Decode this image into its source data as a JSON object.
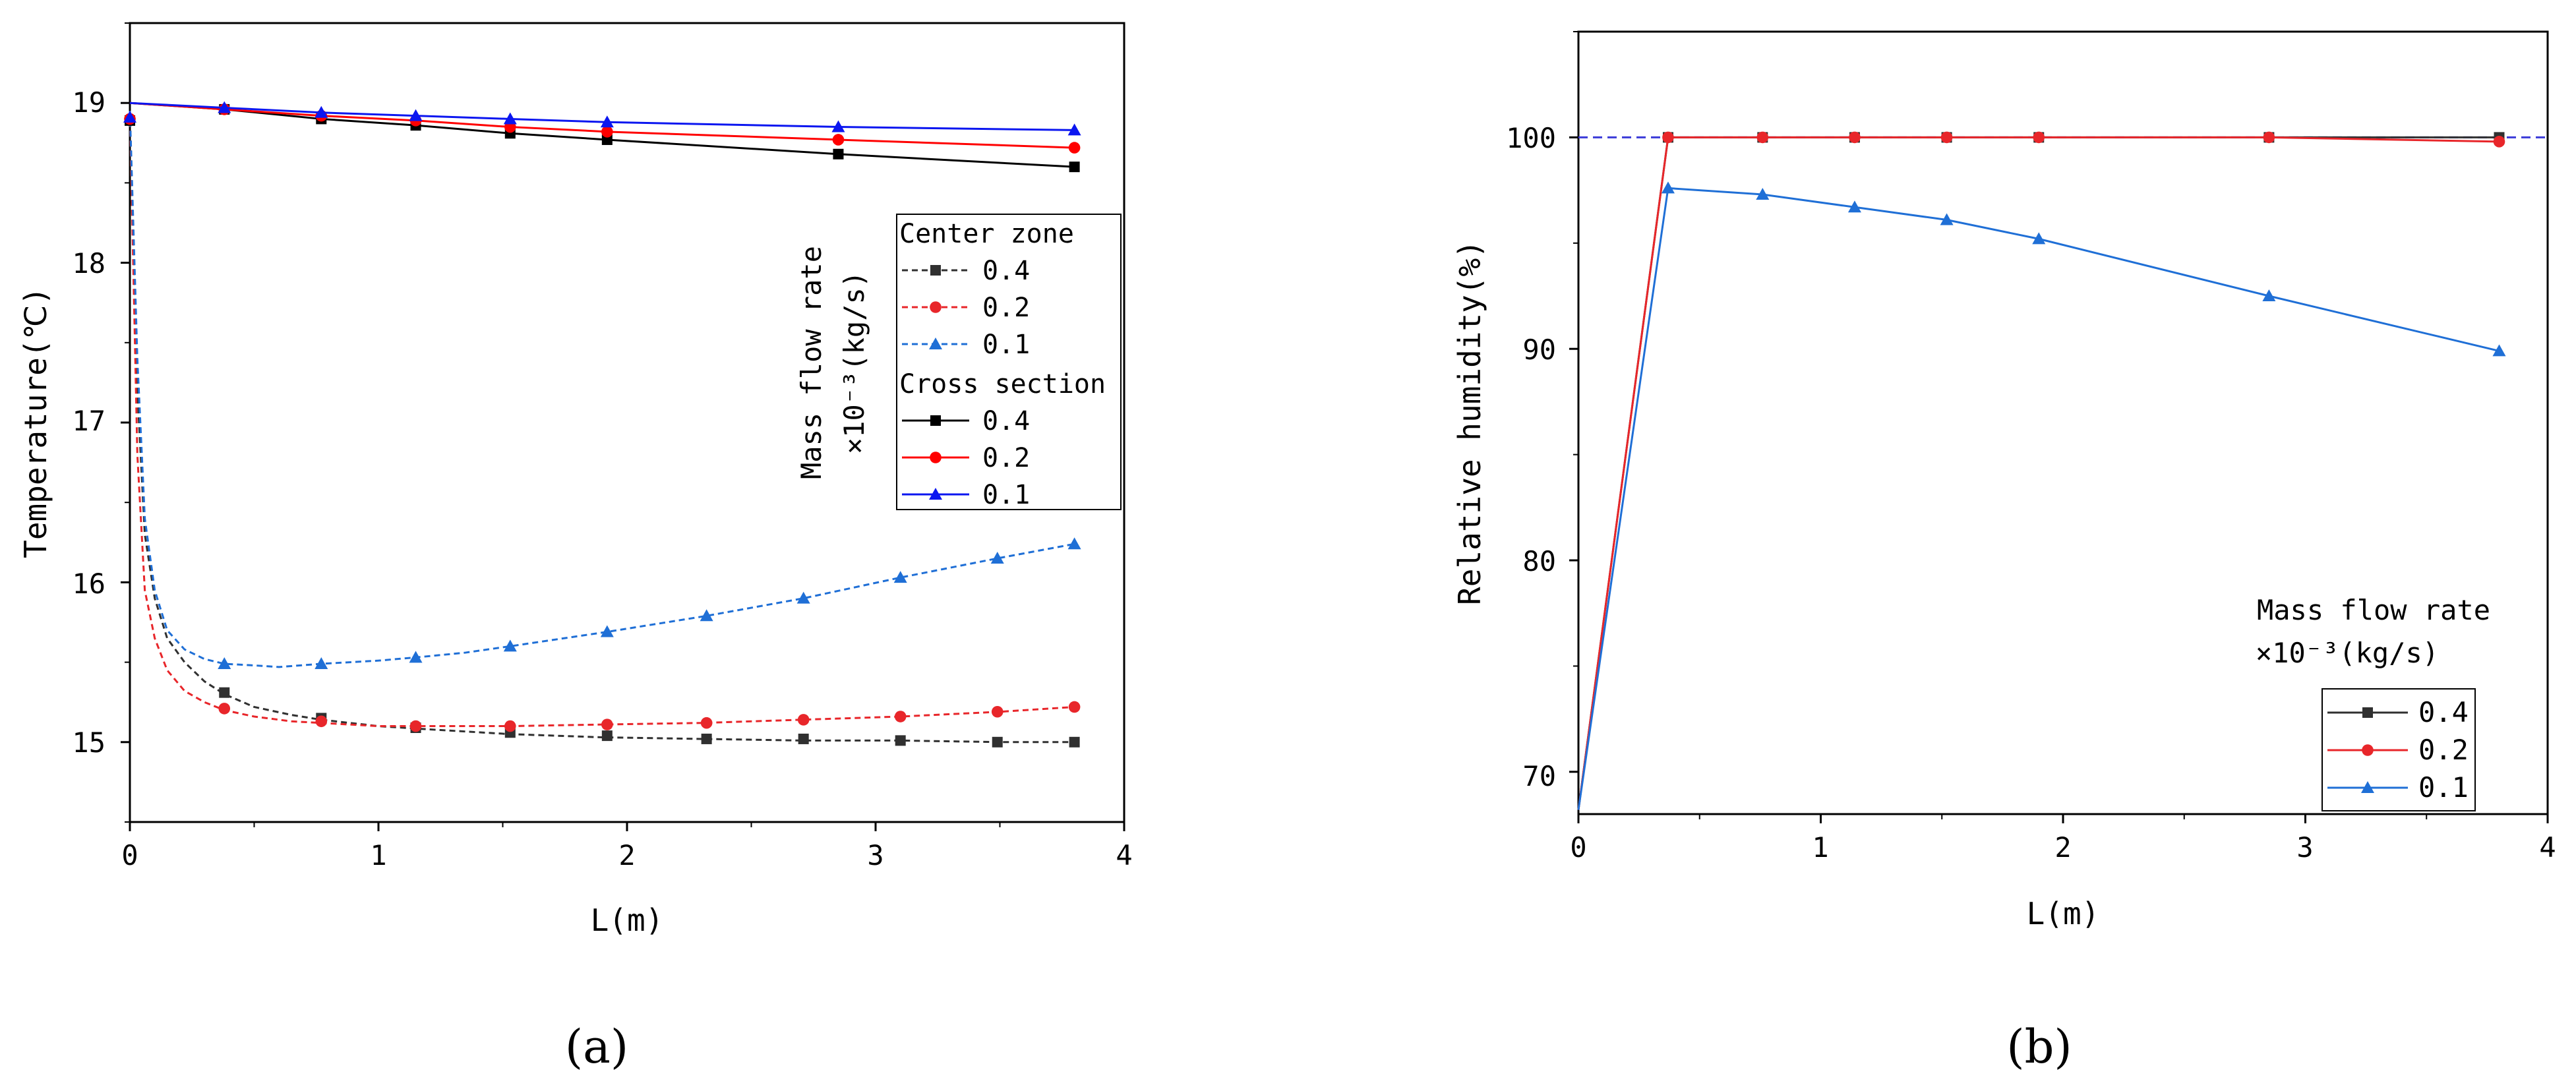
{
  "colors": {
    "black": "#303030",
    "red": "#e8262a",
    "blue": "#1f6fd6",
    "pureBlue": "#0b16f0",
    "dashBlue": "#3b3bd8"
  },
  "chart_data": [
    {
      "type": "line",
      "panel_label": "(a)",
      "xlabel": "L(m)",
      "ylabel": "Temperature(℃)",
      "xlim": [
        0,
        4
      ],
      "ylim": [
        14.5,
        19.5
      ],
      "xticks": [
        0,
        1,
        2,
        3,
        4
      ],
      "xtick_labels": [
        "0",
        "1",
        "2",
        "3",
        "4"
      ],
      "yticks": [
        15,
        16,
        17,
        18,
        19
      ],
      "ytick_labels": [
        "15",
        "16",
        "17",
        "18",
        "19"
      ],
      "legend": {
        "side_title_line1": "Mass flow rate",
        "side_title_line2": "×10⁻³(kg/s)",
        "group1_title": "Center zone",
        "group2_title": "Cross section",
        "labels": [
          "0.4",
          "0.2",
          "0.1",
          "0.4",
          "0.2",
          "0.1"
        ]
      },
      "series": [
        {
          "name": "Center zone 0.4",
          "style": "dashed",
          "color": "#303030",
          "marker": "square",
          "curve": [
            [
              0,
              18.95
            ],
            [
              0.03,
              17.2
            ],
            [
              0.06,
              16.3
            ],
            [
              0.1,
              15.9
            ],
            [
              0.15,
              15.65
            ],
            [
              0.22,
              15.5
            ],
            [
              0.3,
              15.38
            ],
            [
              0.38,
              15.3
            ],
            [
              0.5,
              15.22
            ],
            [
              0.65,
              15.17
            ],
            [
              0.77,
              15.14
            ],
            [
              1.0,
              15.1
            ],
            [
              1.2,
              15.08
            ],
            [
              1.53,
              15.05
            ],
            [
              1.9,
              15.03
            ],
            [
              2.3,
              15.02
            ],
            [
              2.7,
              15.01
            ],
            [
              3.1,
              15.01
            ],
            [
              3.5,
              15.0
            ],
            [
              3.8,
              15.0
            ]
          ],
          "markers": [
            [
              0.38,
              15.31
            ],
            [
              0.77,
              15.15
            ],
            [
              1.15,
              15.09
            ],
            [
              1.53,
              15.06
            ],
            [
              1.92,
              15.04
            ],
            [
              2.32,
              15.02
            ],
            [
              2.71,
              15.02
            ],
            [
              3.1,
              15.01
            ],
            [
              3.49,
              15.0
            ],
            [
              3.8,
              15.0
            ]
          ]
        },
        {
          "name": "Center zone 0.2",
          "style": "dashed",
          "color": "#e8262a",
          "marker": "circle",
          "curve": [
            [
              0,
              18.95
            ],
            [
              0.03,
              16.8
            ],
            [
              0.06,
              15.95
            ],
            [
              0.1,
              15.65
            ],
            [
              0.15,
              15.45
            ],
            [
              0.22,
              15.32
            ],
            [
              0.3,
              15.25
            ],
            [
              0.38,
              15.2
            ],
            [
              0.5,
              15.16
            ],
            [
              0.65,
              15.13
            ],
            [
              0.77,
              15.12
            ],
            [
              1.0,
              15.1
            ],
            [
              1.2,
              15.1
            ],
            [
              1.53,
              15.1
            ],
            [
              1.9,
              15.11
            ],
            [
              2.3,
              15.12
            ],
            [
              2.7,
              15.14
            ],
            [
              3.1,
              15.16
            ],
            [
              3.5,
              15.19
            ],
            [
              3.8,
              15.22
            ]
          ],
          "markers": [
            [
              0.38,
              15.21
            ],
            [
              0.77,
              15.13
            ],
            [
              1.15,
              15.1
            ],
            [
              1.53,
              15.1
            ],
            [
              1.92,
              15.11
            ],
            [
              2.32,
              15.12
            ],
            [
              2.71,
              15.14
            ],
            [
              3.1,
              15.16
            ],
            [
              3.49,
              15.19
            ],
            [
              3.8,
              15.22
            ]
          ]
        },
        {
          "name": "Center zone 0.1",
          "style": "dashed",
          "color": "#1f6fd6",
          "marker": "triangle",
          "curve": [
            [
              0,
              18.95
            ],
            [
              0.03,
              17.4
            ],
            [
              0.06,
              16.4
            ],
            [
              0.1,
              15.95
            ],
            [
              0.15,
              15.7
            ],
            [
              0.22,
              15.58
            ],
            [
              0.3,
              15.52
            ],
            [
              0.38,
              15.49
            ],
            [
              0.5,
              15.48
            ],
            [
              0.6,
              15.47
            ],
            [
              0.77,
              15.49
            ],
            [
              1.0,
              15.51
            ],
            [
              1.15,
              15.53
            ],
            [
              1.35,
              15.56
            ],
            [
              1.53,
              15.6
            ],
            [
              1.92,
              15.69
            ],
            [
              2.32,
              15.79
            ],
            [
              2.71,
              15.9
            ],
            [
              3.1,
              16.03
            ],
            [
              3.49,
              16.15
            ],
            [
              3.8,
              16.24
            ]
          ],
          "markers": [
            [
              0.38,
              15.49
            ],
            [
              0.77,
              15.49
            ],
            [
              1.15,
              15.53
            ],
            [
              1.53,
              15.6
            ],
            [
              1.92,
              15.69
            ],
            [
              2.32,
              15.79
            ],
            [
              2.71,
              15.9
            ],
            [
              3.1,
              16.03
            ],
            [
              3.49,
              16.15
            ],
            [
              3.8,
              16.24
            ]
          ]
        },
        {
          "name": "Cross section 0.4",
          "style": "solid",
          "color": "#000000",
          "marker": "square",
          "curve": [
            [
              0,
              19.0
            ],
            [
              0.38,
              18.96
            ],
            [
              0.77,
              18.9
            ],
            [
              1.15,
              18.86
            ],
            [
              1.53,
              18.81
            ],
            [
              1.92,
              18.77
            ],
            [
              2.85,
              18.68
            ],
            [
              3.8,
              18.6
            ]
          ],
          "markers": [
            [
              0,
              18.89
            ],
            [
              0.38,
              18.96
            ],
            [
              0.77,
              18.9
            ],
            [
              1.15,
              18.86
            ],
            [
              1.53,
              18.81
            ],
            [
              1.92,
              18.77
            ],
            [
              2.85,
              18.68
            ],
            [
              3.8,
              18.6
            ]
          ]
        },
        {
          "name": "Cross section 0.2",
          "style": "solid",
          "color": "#ff0000",
          "marker": "circle",
          "curve": [
            [
              0,
              19.0
            ],
            [
              0.38,
              18.96
            ],
            [
              0.77,
              18.92
            ],
            [
              1.15,
              18.89
            ],
            [
              1.53,
              18.85
            ],
            [
              1.92,
              18.82
            ],
            [
              2.85,
              18.77
            ],
            [
              3.8,
              18.72
            ]
          ],
          "markers": [
            [
              0,
              18.9
            ],
            [
              0.38,
              18.96
            ],
            [
              0.77,
              18.92
            ],
            [
              1.15,
              18.89
            ],
            [
              1.53,
              18.85
            ],
            [
              1.92,
              18.82
            ],
            [
              2.85,
              18.77
            ],
            [
              3.8,
              18.72
            ]
          ]
        },
        {
          "name": "Cross section 0.1",
          "style": "solid",
          "color": "#0b16f0",
          "marker": "triangle",
          "curve": [
            [
              0,
              19.0
            ],
            [
              0.38,
              18.97
            ],
            [
              0.77,
              18.94
            ],
            [
              1.15,
              18.92
            ],
            [
              1.53,
              18.9
            ],
            [
              1.92,
              18.88
            ],
            [
              2.85,
              18.85
            ],
            [
              3.8,
              18.83
            ]
          ],
          "markers": [
            [
              0,
              18.91
            ],
            [
              0.38,
              18.97
            ],
            [
              0.77,
              18.94
            ],
            [
              1.15,
              18.92
            ],
            [
              1.53,
              18.9
            ],
            [
              1.92,
              18.88
            ],
            [
              2.85,
              18.85
            ],
            [
              3.8,
              18.83
            ]
          ]
        }
      ]
    },
    {
      "type": "line",
      "panel_label": "(b)",
      "xlabel": "L(m)",
      "ylabel": "Relative humidity(%)",
      "xlim": [
        0,
        4
      ],
      "ylim": [
        68,
        105
      ],
      "xticks": [
        0,
        1,
        2,
        3,
        4
      ],
      "xtick_labels": [
        "0",
        "1",
        "2",
        "3",
        "4"
      ],
      "yticks": [
        70,
        80,
        90,
        100
      ],
      "ytick_labels": [
        "70",
        "80",
        "90",
        "100"
      ],
      "reference_line": 100,
      "legend": {
        "title_line1": "Mass flow rate",
        "title_line2": "×10⁻³(kg/s)",
        "labels": [
          "0.4",
          "0.2",
          "0.1"
        ]
      },
      "series": [
        {
          "name": "0.4",
          "color": "#303030",
          "marker": "square",
          "points": [
            [
              0,
              68.2
            ],
            [
              0.37,
              100
            ],
            [
              0.76,
              100
            ],
            [
              1.14,
              100
            ],
            [
              1.52,
              100
            ],
            [
              1.9,
              100
            ],
            [
              2.85,
              100
            ],
            [
              3.8,
              100
            ]
          ]
        },
        {
          "name": "0.2",
          "color": "#e8262a",
          "marker": "circle",
          "points": [
            [
              0,
              68.2
            ],
            [
              0.37,
              100
            ],
            [
              0.76,
              100
            ],
            [
              1.14,
              100
            ],
            [
              1.52,
              100
            ],
            [
              1.9,
              100
            ],
            [
              2.85,
              100
            ],
            [
              3.8,
              99.8
            ]
          ]
        },
        {
          "name": "0.1",
          "color": "#1f6fd6",
          "marker": "triangle",
          "points": [
            [
              0,
              68.2
            ],
            [
              0.37,
              97.6
            ],
            [
              0.76,
              97.3
            ],
            [
              1.14,
              96.7
            ],
            [
              1.52,
              96.1
            ],
            [
              1.9,
              95.2
            ],
            [
              2.85,
              92.5
            ],
            [
              3.8,
              89.9
            ]
          ]
        }
      ]
    }
  ]
}
